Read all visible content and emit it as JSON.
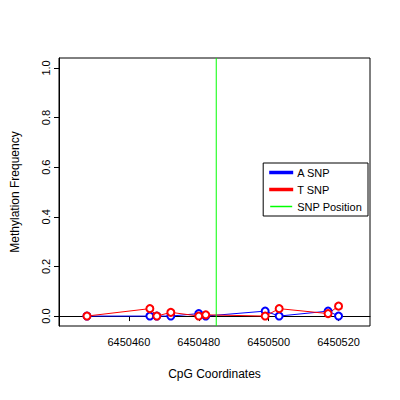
{
  "chart_data": {
    "type": "line",
    "x_label": "CpG Coordinates",
    "y_label": "Methylation Frequency",
    "xlim": [
      6450440,
      6450529
    ],
    "xticks": [
      6450460,
      6450480,
      6450500,
      6450520
    ],
    "ylim": [
      -0.04,
      1.04
    ],
    "yticks": [
      {
        "value": 0,
        "label": "0.0"
      },
      0.2,
      0.4,
      0.6,
      0.8,
      {
        "value": 1,
        "label": "1.0"
      }
    ],
    "x": [
      6450448,
      6450466,
      6450468,
      6450472,
      6450480,
      6450482,
      6450499,
      6450503,
      6450517,
      6450520
    ],
    "series": [
      {
        "name": "A SNP",
        "color": "#0000ff",
        "marker": "circle",
        "values": [
          0,
          0,
          0,
          0,
          0.01,
          0,
          0.02,
          0,
          0.02,
          0
        ]
      },
      {
        "name": "T SNP",
        "color": "#ff0000",
        "marker": "circle",
        "values": [
          0,
          0.03,
          0,
          0.015,
          0,
          0.005,
          0,
          0.03,
          0.01,
          0.04
        ]
      }
    ],
    "snp_position": {
      "name": "SNP Position",
      "color": "#00ff00",
      "x": 6450485
    },
    "legend": "right",
    "grid": false
  }
}
